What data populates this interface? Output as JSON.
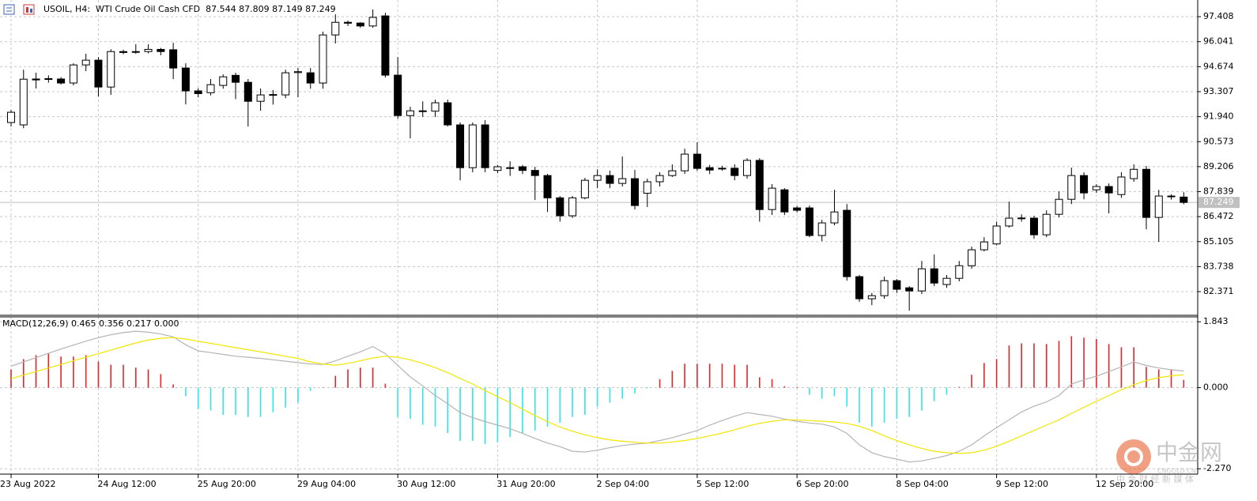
{
  "chart_data": [
    {
      "type": "candlestick",
      "title": "USOIL, H4:  WTI Crude Oil Cash CFD  87.544 87.809 87.149 87.249",
      "categories": [
        "23 Aug 2022",
        null,
        null,
        null,
        null,
        null,
        null,
        "24 Aug 12:00",
        null,
        null,
        null,
        null,
        null,
        null,
        null,
        "25 Aug 20:00",
        null,
        null,
        null,
        null,
        null,
        null,
        null,
        "29 Aug 04:00",
        null,
        null,
        null,
        null,
        null,
        null,
        null,
        "30 Aug 12:00",
        null,
        null,
        null,
        null,
        null,
        null,
        null,
        "31 Aug 20:00",
        null,
        null,
        null,
        null,
        null,
        null,
        null,
        "2 Sep 04:00",
        null,
        null,
        null,
        null,
        null,
        null,
        null,
        "5 Sep 12:00",
        null,
        null,
        null,
        null,
        null,
        null,
        null,
        "6 Sep 20:00",
        null,
        null,
        null,
        null,
        null,
        null,
        null,
        "8 Sep 04:00",
        null,
        null,
        null,
        null,
        null,
        null,
        null,
        "9 Sep 12:00",
        null,
        null,
        null,
        null,
        null,
        null,
        null,
        "12 Sep 20:00",
        null,
        null,
        null,
        null,
        null,
        null,
        null
      ],
      "open": [
        91.62,
        91.49,
        94.0,
        93.98,
        94.0,
        93.78,
        94.77,
        95.03,
        93.56,
        95.5,
        95.47,
        95.5,
        95.62,
        95.6,
        94.6,
        93.35,
        93.25,
        93.65,
        94.2,
        93.82,
        92.78,
        93.13,
        93.13,
        94.35,
        94.34,
        93.78,
        96.41,
        97.1,
        97.06,
        96.9,
        97.45,
        94.21,
        92.0,
        92.26,
        92.24,
        92.7,
        91.49,
        89.15,
        91.49,
        89.0,
        89.15,
        89.2,
        89.0,
        88.72,
        87.5,
        86.52,
        87.5,
        88.46,
        88.72,
        88.29,
        88.55,
        87.75,
        88.38,
        88.72,
        88.98,
        89.89,
        89.15,
        89.1,
        89.12,
        88.72,
        89.55,
        86.86,
        87.94,
        86.95,
        86.95,
        85.44,
        86.13,
        86.82,
        83.19,
        81.98,
        82.15,
        82.97,
        82.58,
        82.41,
        83.62,
        82.76,
        83.1,
        83.79,
        84.66,
        84.98,
        85.96,
        86.4,
        86.39,
        85.48,
        86.6,
        87.42,
        88.72,
        87.94,
        88.12,
        87.68,
        88.55,
        89.06,
        86.43,
        87.6,
        87.544
      ],
      "high": [
        92.3,
        94.51,
        94.34,
        94.2,
        94.1,
        94.86,
        95.38,
        95.2,
        95.63,
        95.6,
        95.9,
        95.9,
        95.7,
        95.98,
        94.86,
        93.5,
        94.0,
        94.25,
        94.34,
        94.0,
        93.48,
        93.4,
        94.51,
        94.6,
        94.6,
        96.59,
        97.54,
        97.2,
        97.1,
        97.8,
        97.62,
        95.2,
        92.48,
        92.78,
        92.87,
        92.87,
        91.62,
        91.62,
        91.75,
        89.3,
        89.5,
        89.3,
        89.2,
        88.81,
        87.6,
        87.6,
        88.59,
        89.06,
        88.99,
        89.76,
        89.03,
        88.55,
        88.9,
        89.33,
        90.19,
        90.54,
        89.3,
        89.25,
        89.33,
        89.67,
        89.67,
        88.25,
        88.03,
        87.05,
        87.08,
        86.3,
        87.94,
        87.16,
        83.28,
        82.3,
        83.19,
        83.06,
        82.67,
        84.05,
        84.4,
        83.28,
        84.05,
        84.83,
        85.35,
        86.2,
        87.29,
        86.6,
        86.52,
        86.82,
        87.85,
        89.15,
        88.9,
        88.25,
        88.29,
        88.9,
        89.33,
        89.24,
        87.94,
        87.7,
        87.809
      ],
      "low": [
        91.4,
        91.31,
        93.48,
        93.8,
        93.7,
        93.65,
        94.43,
        93.04,
        93.13,
        95.35,
        95.38,
        95.4,
        95.3,
        93.99,
        92.61,
        93.0,
        93.1,
        93.47,
        92.9,
        91.4,
        92.26,
        92.6,
        92.95,
        93.0,
        93.47,
        93.47,
        95.94,
        96.9,
        96.8,
        96.8,
        94.08,
        91.83,
        90.75,
        91.92,
        91.92,
        91.4,
        88.46,
        88.9,
        88.9,
        88.85,
        88.7,
        88.8,
        87.38,
        86.73,
        86.2,
        86.4,
        87.42,
        88.03,
        88.03,
        88.12,
        86.86,
        87.0,
        88.12,
        88.64,
        88.81,
        88.98,
        88.8,
        88.98,
        88.46,
        88.55,
        86.2,
        86.56,
        86.56,
        86.7,
        85.35,
        85.13,
        86.0,
        82.97,
        81.81,
        81.63,
        81.98,
        82.3,
        81.33,
        82.24,
        82.67,
        82.58,
        82.93,
        83.62,
        84.57,
        84.9,
        85.87,
        86.2,
        85.26,
        85.35,
        86.43,
        87.16,
        87.42,
        87.77,
        86.65,
        87.5,
        88.38,
        85.78,
        85.09,
        87.4,
        87.149
      ],
      "close": [
        92.18,
        93.99,
        93.95,
        94.02,
        93.78,
        94.77,
        95.03,
        93.56,
        95.5,
        95.45,
        95.5,
        95.62,
        95.5,
        94.6,
        93.35,
        93.2,
        93.69,
        94.12,
        93.82,
        92.78,
        93.13,
        93.15,
        94.34,
        94.4,
        93.78,
        96.41,
        97.1,
        97.05,
        96.9,
        97.37,
        94.21,
        92.0,
        92.26,
        92.24,
        92.7,
        91.49,
        89.15,
        91.49,
        89.15,
        89.2,
        89.13,
        89.0,
        88.72,
        87.5,
        86.52,
        87.5,
        88.46,
        88.72,
        88.29,
        88.55,
        87.08,
        88.38,
        88.72,
        88.98,
        89.89,
        89.11,
        89.02,
        89.12,
        88.72,
        89.55,
        86.86,
        88.03,
        86.73,
        86.82,
        85.44,
        86.13,
        86.73,
        83.19,
        81.98,
        82.15,
        82.97,
        82.5,
        82.41,
        83.62,
        82.84,
        83.1,
        83.79,
        84.66,
        85.09,
        85.96,
        86.39,
        86.38,
        85.48,
        86.6,
        87.42,
        88.72,
        87.77,
        88.12,
        87.77,
        88.64,
        89.06,
        86.43,
        87.6,
        87.58,
        87.249
      ],
      "up_color": "#ffffff",
      "down_color": "#000000",
      "outline_color": "#000000",
      "current_price": 87.249,
      "current_price_color": "#c0c0c0",
      "ylim": [
        81.12,
        98.32
      ],
      "yticks": [
        97.408,
        96.041,
        94.674,
        93.307,
        {
          "value": 91.94,
          "label": "91.940"
        },
        90.573,
        89.206,
        87.839,
        86.472,
        85.105,
        83.738,
        82.371
      ],
      "grid": true
    },
    {
      "type": "macd",
      "title": "MACD(12,26,9) 0.465 0.356 0.217 0.000",
      "histogram": {
        "up_color": "#e0262b",
        "down_color": "#33e3e6",
        "values": [
          0.51,
          0.8,
          0.91,
          0.96,
          0.87,
          0.87,
          0.91,
          0.73,
          0.64,
          0.64,
          0.56,
          0.51,
          0.38,
          0.09,
          -0.24,
          -0.6,
          -0.64,
          -0.76,
          -0.76,
          -0.82,
          -0.82,
          -0.69,
          -0.56,
          -0.42,
          -0.09,
          0.01,
          0.33,
          0.51,
          0.56,
          0.56,
          0.11,
          -0.82,
          -0.87,
          -1.04,
          -1.09,
          -1.27,
          -1.49,
          -1.49,
          -1.58,
          -1.53,
          -1.38,
          -1.27,
          -1.2,
          -1.09,
          -0.98,
          -0.82,
          -0.76,
          -0.53,
          -0.42,
          -0.31,
          -0.16,
          -0.02,
          0.24,
          0.47,
          0.67,
          0.67,
          0.67,
          0.67,
          0.64,
          0.64,
          0.29,
          0.24,
          0.04,
          0.02,
          -0.2,
          -0.31,
          -0.24,
          -0.53,
          -0.98,
          -1.09,
          -0.98,
          -0.87,
          -0.82,
          -0.64,
          -0.38,
          -0.2,
          0.02,
          0.36,
          0.69,
          0.8,
          1.18,
          1.24,
          1.24,
          1.22,
          1.31,
          1.44,
          1.4,
          1.36,
          1.22,
          1.13,
          1.13,
          0.58,
          0.51,
          0.51,
          0.217
        ]
      },
      "lines": [
        {
          "color": "#b4b4b4",
          "values": [
            0.6,
            0.72,
            0.84,
            0.96,
            1.08,
            1.19,
            1.3,
            1.4,
            1.48,
            1.54,
            1.58,
            1.55,
            1.5,
            1.42,
            1.2,
            1.03,
            0.98,
            0.93,
            0.88,
            0.85,
            0.82,
            0.78,
            0.74,
            0.7,
            0.66,
            0.65,
            0.75,
            0.88,
            1.0,
            1.15,
            0.95,
            0.62,
            0.3,
            0.05,
            -0.22,
            -0.45,
            -0.7,
            -0.84,
            -0.95,
            -1.05,
            -1.15,
            -1.28,
            -1.42,
            -1.55,
            -1.65,
            -1.78,
            -1.8,
            -1.75,
            -1.68,
            -1.62,
            -1.58,
            -1.55,
            -1.48,
            -1.4,
            -1.3,
            -1.2,
            -1.05,
            -0.92,
            -0.8,
            -0.7,
            -0.75,
            -0.8,
            -0.88,
            -0.94,
            -0.99,
            -1.02,
            -1.1,
            -1.28,
            -1.6,
            -1.82,
            -1.93,
            -2.0,
            -2.08,
            -2.05,
            -1.98,
            -1.9,
            -1.78,
            -1.6,
            -1.35,
            -1.12,
            -0.9,
            -0.68,
            -0.52,
            -0.4,
            -0.22,
            0.1,
            0.22,
            0.32,
            0.45,
            0.58,
            0.72,
            0.62,
            0.55,
            0.5,
            0.465
          ]
        },
        {
          "color": "#f2e600",
          "values": [
            0.25,
            0.35,
            0.45,
            0.55,
            0.65,
            0.75,
            0.85,
            0.95,
            1.05,
            1.15,
            1.25,
            1.33,
            1.38,
            1.4,
            1.36,
            1.3,
            1.24,
            1.18,
            1.12,
            1.06,
            1.0,
            0.94,
            0.88,
            0.82,
            0.72,
            0.66,
            0.63,
            0.68,
            0.75,
            0.83,
            0.88,
            0.85,
            0.78,
            0.68,
            0.56,
            0.42,
            0.26,
            0.1,
            -0.08,
            -0.25,
            -0.42,
            -0.6,
            -0.78,
            -0.95,
            -1.1,
            -1.22,
            -1.32,
            -1.4,
            -1.46,
            -1.5,
            -1.53,
            -1.55,
            -1.55,
            -1.52,
            -1.48,
            -1.42,
            -1.35,
            -1.27,
            -1.18,
            -1.08,
            -1.0,
            -0.94,
            -0.9,
            -0.9,
            -0.92,
            -0.94,
            -0.96,
            -1.0,
            -1.08,
            -1.2,
            -1.35,
            -1.48,
            -1.6,
            -1.7,
            -1.78,
            -1.82,
            -1.84,
            -1.82,
            -1.75,
            -1.64,
            -1.5,
            -1.35,
            -1.2,
            -1.05,
            -0.9,
            -0.72,
            -0.55,
            -0.38,
            -0.22,
            -0.06,
            0.08,
            0.2,
            0.28,
            0.33,
            0.356
          ]
        }
      ],
      "ylim": [
        -2.42,
        1.98
      ],
      "yticks": [
        1.843,
        {
          "value": 0,
          "label": "0.000"
        },
        {
          "value": -2.27,
          "label": "-2.270"
        }
      ],
      "grid": true
    }
  ],
  "watermark": {
    "name": "中金网",
    "site": "CNGOLD.CN",
    "slogan": "中 金 财 经 新 媒 体"
  }
}
